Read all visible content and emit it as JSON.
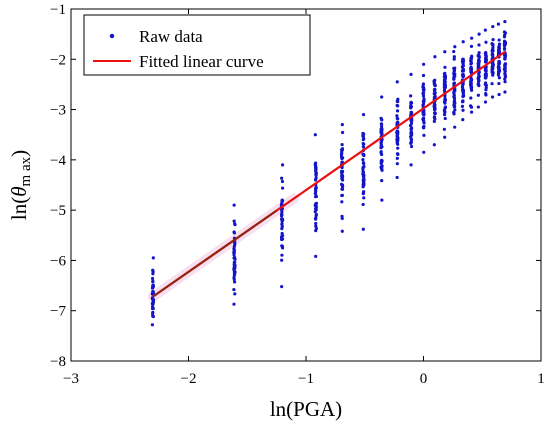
{
  "chart_data": {
    "type": "scatter",
    "xlabel": "ln(PGA)",
    "ylabel": "ln(θm ax)",
    "ylabel_prefix": "ln(",
    "ylabel_symbol": "θ",
    "ylabel_sub": "m ax",
    "ylabel_suffix": ")",
    "xlim": [
      -3,
      1
    ],
    "ylim": [
      -8,
      -1
    ],
    "xticks": [
      -3,
      -2,
      -1,
      0,
      1
    ],
    "yticks": [
      -8,
      -7,
      -6,
      -5,
      -4,
      -3,
      -2,
      -1
    ],
    "xtick_labels": [
      "−3",
      "−2",
      "−1",
      "0",
      "1"
    ],
    "ytick_labels": [
      "−8",
      "−7",
      "−6",
      "−5",
      "−4",
      "−3",
      "−2",
      "−1"
    ],
    "grid": false,
    "legend": {
      "position": "top-left",
      "entries": [
        "Raw data",
        "Fitted linear curve"
      ]
    },
    "colors": {
      "raw": "#1414c8",
      "fit": "#e81010",
      "halo": "#f7dff0"
    },
    "series": [
      {
        "name": "Raw data",
        "kind": "scatter",
        "columns": [
          {
            "x": -2.303,
            "ymin": -7.28,
            "ymax": -5.95,
            "ycenter": -6.8
          },
          {
            "x": -1.609,
            "ymin": -6.87,
            "ymax": -4.9,
            "ycenter": -5.7
          },
          {
            "x": -1.204,
            "ymin": -6.52,
            "ymax": -4.1,
            "ycenter": -5.3
          },
          {
            "x": -0.916,
            "ymin": -5.92,
            "ymax": -3.5,
            "ycenter": -4.65
          },
          {
            "x": -0.693,
            "ymin": -5.42,
            "ymax": -3.3,
            "ycenter": -4.2
          },
          {
            "x": -0.511,
            "ymin": -5.38,
            "ymax": -3.1,
            "ycenter": -4.0
          },
          {
            "x": -0.357,
            "ymin": -4.8,
            "ymax": -2.75,
            "ycenter": -3.7
          },
          {
            "x": -0.223,
            "ymin": -4.35,
            "ymax": -2.45,
            "ycenter": -3.5
          },
          {
            "x": -0.105,
            "ymin": -4.1,
            "ymax": -2.3,
            "ycenter": -3.25
          },
          {
            "x": 0.0,
            "ymin": -3.85,
            "ymax": -2.1,
            "ycenter": -3.0
          },
          {
            "x": 0.095,
            "ymin": -3.7,
            "ymax": -1.95,
            "ycenter": -2.85
          },
          {
            "x": 0.182,
            "ymin": -3.55,
            "ymax": -1.85,
            "ycenter": -2.7
          },
          {
            "x": 0.262,
            "ymin": -3.35,
            "ymax": -1.75,
            "ycenter": -2.55
          },
          {
            "x": 0.336,
            "ymin": -3.2,
            "ymax": -1.65,
            "ycenter": -2.4
          },
          {
            "x": 0.405,
            "ymin": -3.05,
            "ymax": -1.58,
            "ycenter": -2.3
          },
          {
            "x": 0.47,
            "ymin": -2.95,
            "ymax": -1.5,
            "ycenter": -2.2
          },
          {
            "x": 0.531,
            "ymin": -2.85,
            "ymax": -1.42,
            "ycenter": -2.1
          },
          {
            "x": 0.588,
            "ymin": -2.75,
            "ymax": -1.35,
            "ycenter": -2.0
          },
          {
            "x": 0.642,
            "ymin": -2.7,
            "ymax": -1.3,
            "ycenter": -1.95
          },
          {
            "x": 0.693,
            "ymin": -2.65,
            "ymax": -1.25,
            "ycenter": -1.9
          }
        ]
      },
      {
        "name": "Fitted linear curve",
        "kind": "line",
        "points": [
          [
            -2.303,
            -6.72
          ],
          [
            0.693,
            -1.85
          ]
        ]
      }
    ]
  }
}
